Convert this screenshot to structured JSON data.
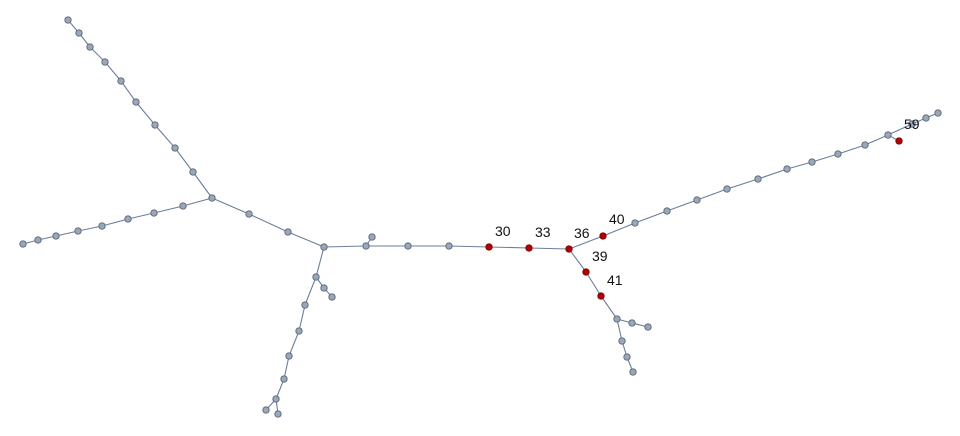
{
  "colors": {
    "edge": "#6b7f9a",
    "node": "#9aa7b8",
    "highlight": "#b30000",
    "label": "#111111"
  },
  "labeled_nodes": [
    {
      "id": "30",
      "label": "30",
      "highlight": true
    },
    {
      "id": "33",
      "label": "33",
      "highlight": true
    },
    {
      "id": "36",
      "label": "36",
      "highlight": true
    },
    {
      "id": "39",
      "label": "39",
      "highlight": true
    },
    {
      "id": "40",
      "label": "40",
      "highlight": true
    },
    {
      "id": "41",
      "label": "41",
      "highlight": true
    },
    {
      "id": "59",
      "label": "59",
      "highlight": true
    }
  ]
}
